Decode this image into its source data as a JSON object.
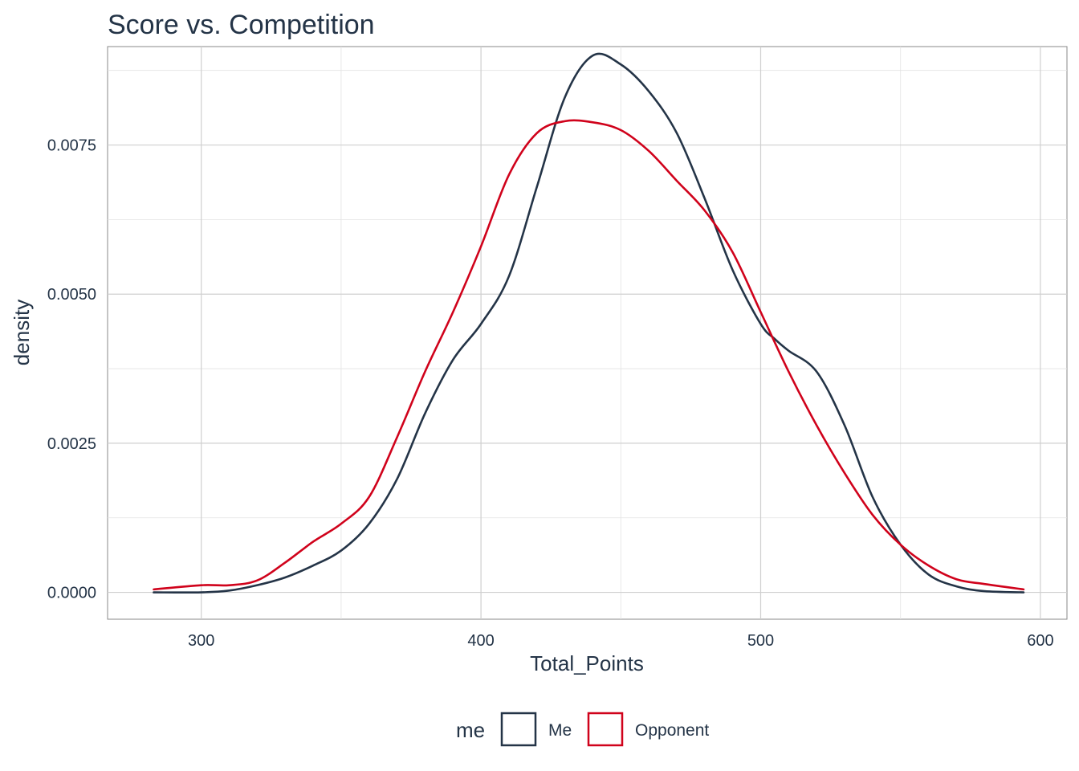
{
  "chart_data": {
    "type": "line",
    "title": "Score vs. Competition",
    "xlabel": "Total_Points",
    "ylabel": "density",
    "xlim": [
      266.5,
      609.5
    ],
    "ylim": [
      -0.00045,
      0.00915
    ],
    "x_ticks": [
      300,
      400,
      500,
      600
    ],
    "x_tick_labels": [
      "300",
      "400",
      "500",
      "600"
    ],
    "y_ticks": [
      0,
      0.0025,
      0.005,
      0.0075
    ],
    "y_tick_labels": [
      "0.0000",
      "0.0025",
      "0.0050",
      "0.0075"
    ],
    "grid": true,
    "legend": {
      "title": "me",
      "placement": "bottom",
      "entries": [
        "Me",
        "Opponent"
      ]
    },
    "series": [
      {
        "name": "Me",
        "color": "#243447",
        "points": [
          [
            283,
            0.0
          ],
          [
            300,
            0.0
          ],
          [
            310,
            3e-05
          ],
          [
            320,
            0.00012
          ],
          [
            330,
            0.00025
          ],
          [
            340,
            0.00045
          ],
          [
            350,
            0.0007
          ],
          [
            360,
            0.00115
          ],
          [
            370,
            0.0019
          ],
          [
            380,
            0.003
          ],
          [
            390,
            0.0039
          ],
          [
            400,
            0.0045
          ],
          [
            410,
            0.0053
          ],
          [
            420,
            0.0068
          ],
          [
            430,
            0.0083
          ],
          [
            440,
            0.009
          ],
          [
            450,
            0.00885
          ],
          [
            460,
            0.0084
          ],
          [
            470,
            0.0077
          ],
          [
            480,
            0.0066
          ],
          [
            490,
            0.0054
          ],
          [
            500,
            0.0045
          ],
          [
            505,
            0.00425
          ],
          [
            510,
            0.00405
          ],
          [
            520,
            0.0037
          ],
          [
            530,
            0.0028
          ],
          [
            540,
            0.0016
          ],
          [
            550,
            0.0008
          ],
          [
            560,
            0.0003
          ],
          [
            570,
            0.0001
          ],
          [
            580,
            2e-05
          ],
          [
            594,
            0.0
          ]
        ]
      },
      {
        "name": "Opponent",
        "color": "#d0021b",
        "points": [
          [
            283,
            5e-05
          ],
          [
            300,
            0.00012
          ],
          [
            310,
            0.00012
          ],
          [
            320,
            0.0002
          ],
          [
            330,
            0.0005
          ],
          [
            340,
            0.00085
          ],
          [
            350,
            0.00115
          ],
          [
            360,
            0.0016
          ],
          [
            370,
            0.0026
          ],
          [
            380,
            0.0037
          ],
          [
            390,
            0.0047
          ],
          [
            400,
            0.0058
          ],
          [
            410,
            0.007
          ],
          [
            420,
            0.0077
          ],
          [
            430,
            0.0079
          ],
          [
            440,
            0.00788
          ],
          [
            450,
            0.00775
          ],
          [
            460,
            0.0074
          ],
          [
            470,
            0.0069
          ],
          [
            480,
            0.0064
          ],
          [
            490,
            0.0057
          ],
          [
            500,
            0.0047
          ],
          [
            510,
            0.0037
          ],
          [
            520,
            0.0028
          ],
          [
            530,
            0.002
          ],
          [
            540,
            0.0013
          ],
          [
            550,
            0.0008
          ],
          [
            560,
            0.00045
          ],
          [
            570,
            0.00022
          ],
          [
            580,
            0.00014
          ],
          [
            594,
            5e-05
          ]
        ]
      }
    ]
  }
}
